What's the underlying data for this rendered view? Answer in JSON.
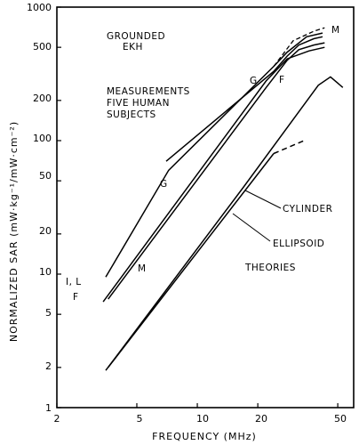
{
  "chart_data": {
    "type": "line",
    "title": "",
    "xlabel": "FREQUENCY  (MHz)",
    "ylabel": "NORMALIZED  SAR  (mW·kg⁻¹/mW·cm⁻²)",
    "x_scale": "log",
    "y_scale": "log",
    "xlim": [
      2,
      60
    ],
    "ylim": [
      1,
      1000
    ],
    "x_ticks": [
      2,
      5,
      10,
      20,
      50
    ],
    "y_ticks": [
      1,
      2,
      5,
      10,
      20,
      50,
      100,
      200,
      500,
      1000
    ],
    "annotations": {
      "grounded": [
        "GROUNDED",
        "EKH"
      ],
      "measurements": [
        "MEASUREMENTS",
        "FIVE HUMAN",
        "SUBJECTS"
      ],
      "cylinder": "CYLINDER",
      "ellipsoid": "ELLIPSOID",
      "theories": "THEORIES"
    },
    "series": [
      {
        "label": "G",
        "style": "solid",
        "points": [
          [
            7.0,
            70
          ],
          [
            24,
            330
          ],
          [
            28,
            430
          ],
          [
            32,
            520
          ],
          [
            38,
            580
          ],
          [
            42,
            600
          ]
        ]
      },
      {
        "label": "I, L",
        "style": "solid",
        "points": [
          [
            3.5,
            9.5
          ],
          [
            7.2,
            60
          ],
          [
            24,
            360
          ],
          [
            28,
            460
          ],
          [
            35,
            600
          ],
          [
            42,
            640
          ]
        ]
      },
      {
        "label": "M",
        "style": "solid",
        "points": [
          [
            3.6,
            6.5
          ],
          [
            22,
            250
          ],
          [
            28,
            400
          ],
          [
            32,
            480
          ],
          [
            38,
            520
          ],
          [
            43,
            540
          ]
        ]
      },
      {
        "label": "F",
        "style": "solid",
        "points": [
          [
            3.4,
            6.2
          ],
          [
            22,
            280
          ],
          [
            28,
            410
          ],
          [
            36,
            470
          ],
          [
            43,
            500
          ]
        ]
      },
      {
        "label": "CYLINDER",
        "style": "solid",
        "points": [
          [
            3.5,
            1.9
          ],
          [
            17,
            45
          ],
          [
            40,
            260
          ],
          [
            46,
            300
          ],
          [
            53,
            250
          ]
        ]
      },
      {
        "label": "ELLIPSOID",
        "style": "solid",
        "points": [
          [
            3.6,
            2.0
          ],
          [
            24,
            80
          ]
        ]
      },
      {
        "label": "ELLIPSOID (extension)",
        "style": "dashed",
        "points": [
          [
            24,
            80
          ],
          [
            34,
            100
          ]
        ]
      }
    ]
  }
}
